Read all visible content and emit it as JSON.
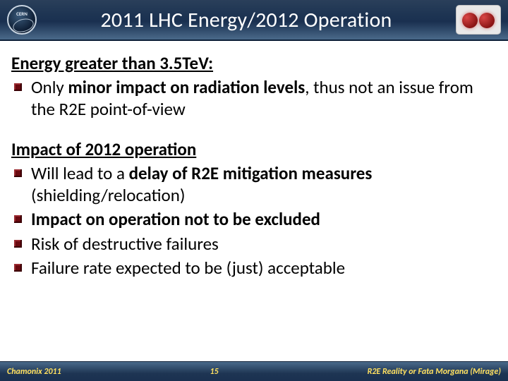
{
  "title": "2011 LHC Energy/2012 Operation",
  "cern_label": "CERN",
  "section1": {
    "heading": "Energy greater than 3.5TeV:",
    "items": [
      {
        "pre": "Only ",
        "bold": "minor impact on radiation levels",
        "post": ", thus not an issue from the R2E point-of-view"
      }
    ]
  },
  "section2": {
    "heading": "Impact of 2012 operation",
    "items": [
      {
        "pre": "Will lead to a ",
        "bold": "delay of R2E mitigation measures",
        "post": " (shielding/relocation)"
      },
      {
        "pre": "",
        "bold": "Impact on operation not to be excluded",
        "post": ""
      },
      {
        "pre": "Risk of destructive failures",
        "bold": "",
        "post": ""
      },
      {
        "pre": "Failure rate expected to be (just) acceptable",
        "bold": "",
        "post": ""
      }
    ]
  },
  "footer": {
    "left": "Chamonix 2011",
    "mid": "15",
    "right": "R2E Reality or Fata Morgana (Mirage)"
  },
  "colors": {
    "title_gradient_top": "#2a3f5a",
    "title_gradient_bottom": "#4a6a8a",
    "bullet": "#6a0a10",
    "footer_text": "#ffe060",
    "body_text": "#000000",
    "title_text": "#ffffff"
  },
  "typography": {
    "title_fontsize": 30,
    "section_head_fontsize": 25,
    "body_fontsize": 25,
    "footer_fontsize": 12
  }
}
